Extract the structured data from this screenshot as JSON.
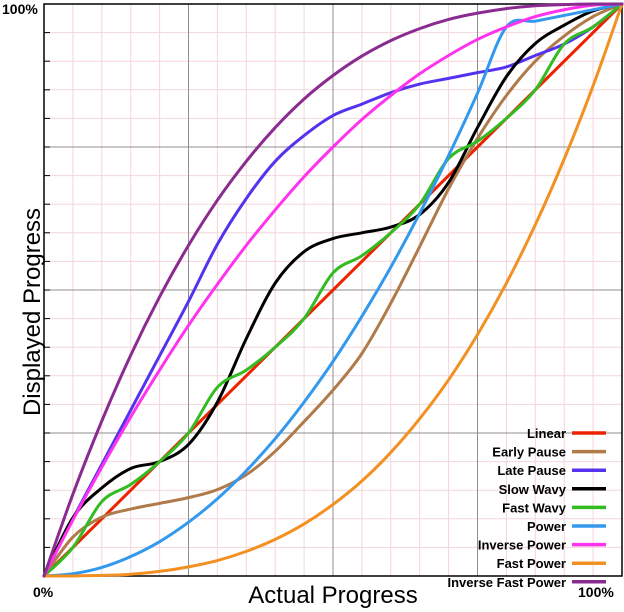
{
  "chart_data": {
    "type": "line",
    "xlabel": "Actual Progress",
    "ylabel": "Displayed Progress",
    "xlim": [
      0,
      1
    ],
    "ylim": [
      0,
      1
    ],
    "x_tick_labels": [
      "0%",
      "100%"
    ],
    "y_tick_labels": [
      "100%"
    ],
    "grid": true,
    "legend_position": "bottom-right",
    "x": [
      0,
      0.05,
      0.1,
      0.15,
      0.2,
      0.25,
      0.3,
      0.35,
      0.4,
      0.45,
      0.5,
      0.55,
      0.6,
      0.65,
      0.7,
      0.75,
      0.8,
      0.85,
      0.9,
      0.95,
      1
    ],
    "series": [
      {
        "name": "Linear",
        "color": "#ee2200",
        "values": [
          0,
          0.05,
          0.1,
          0.15,
          0.2,
          0.25,
          0.3,
          0.35,
          0.4,
          0.45,
          0.5,
          0.55,
          0.6,
          0.65,
          0.7,
          0.75,
          0.8,
          0.85,
          0.9,
          0.95,
          1
        ]
      },
      {
        "name": "Early Pause",
        "color": "#b07a4a",
        "values": [
          0,
          0.068,
          0.103,
          0.117,
          0.127,
          0.137,
          0.151,
          0.177,
          0.218,
          0.27,
          0.325,
          0.389,
          0.477,
          0.576,
          0.677,
          0.765,
          0.84,
          0.9,
          0.944,
          0.978,
          1
        ]
      },
      {
        "name": "Late Pause",
        "color": "#5533ee",
        "values": [
          0,
          0.1,
          0.195,
          0.29,
          0.385,
          0.48,
          0.58,
          0.66,
          0.725,
          0.77,
          0.805,
          0.825,
          0.845,
          0.86,
          0.87,
          0.88,
          0.89,
          0.91,
          0.93,
          0.96,
          1
        ]
      },
      {
        "name": "Slow Wavy",
        "color": "#000000",
        "values": [
          0,
          0.102,
          0.154,
          0.188,
          0.2,
          0.23,
          0.304,
          0.415,
          0.512,
          0.567,
          0.59,
          0.6,
          0.61,
          0.632,
          0.688,
          0.784,
          0.873,
          0.931,
          0.963,
          0.988,
          1
        ]
      },
      {
        "name": "Fast Wavy",
        "color": "#33bb22",
        "values": [
          0,
          0.05,
          0.13,
          0.16,
          0.2,
          0.25,
          0.33,
          0.36,
          0.4,
          0.45,
          0.53,
          0.56,
          0.6,
          0.65,
          0.73,
          0.76,
          0.8,
          0.85,
          0.93,
          0.96,
          1
        ]
      },
      {
        "name": "Power",
        "color": "#3399ee",
        "values": [
          0,
          0.004,
          0.015,
          0.034,
          0.06,
          0.094,
          0.135,
          0.184,
          0.24,
          0.304,
          0.375,
          0.454,
          0.54,
          0.634,
          0.735,
          0.844,
          0.96,
          0.97,
          0.98,
          0.99,
          1
        ]
      },
      {
        "name": "Inverse Power",
        "color": "#ff33ee",
        "values": [
          0,
          0.098,
          0.19,
          0.278,
          0.36,
          0.438,
          0.51,
          0.578,
          0.64,
          0.698,
          0.75,
          0.798,
          0.84,
          0.878,
          0.91,
          0.938,
          0.96,
          0.978,
          0.99,
          0.998,
          1
        ]
      },
      {
        "name": "Fast Power",
        "color": "#f39022",
        "values": [
          0,
          0.0001,
          0.001,
          0.003,
          0.008,
          0.016,
          0.027,
          0.043,
          0.064,
          0.091,
          0.125,
          0.166,
          0.216,
          0.275,
          0.343,
          0.422,
          0.512,
          0.614,
          0.729,
          0.857,
          1
        ]
      },
      {
        "name": "Inverse Fast Power",
        "color": "#8a2b90",
        "values": [
          0,
          0.143,
          0.271,
          0.386,
          0.488,
          0.578,
          0.657,
          0.725,
          0.784,
          0.834,
          0.875,
          0.909,
          0.936,
          0.957,
          0.973,
          0.984,
          0.992,
          0.997,
          0.999,
          1,
          1
        ]
      }
    ]
  }
}
